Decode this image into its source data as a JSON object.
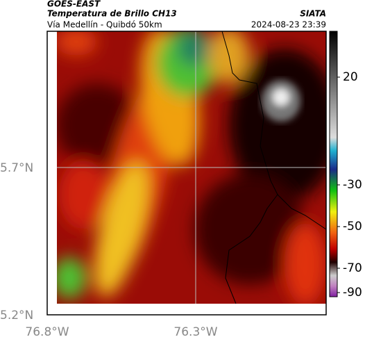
{
  "header": {
    "source": "GOES-EAST",
    "title": "Temperatura de Brillo CH13",
    "brand": "SIATA",
    "subtitle": "Vía Medellín - Quibdó 50km",
    "timestamp": "2024-08-23 23:39"
  },
  "map": {
    "lon_labels": [
      "76.8°W",
      "76.3°W"
    ],
    "lat_labels": [
      "5.7°N",
      "5.2°N"
    ]
  },
  "colorbar": {
    "ticks": [
      "20",
      "-30",
      "-50",
      "-70",
      "-90"
    ]
  }
}
